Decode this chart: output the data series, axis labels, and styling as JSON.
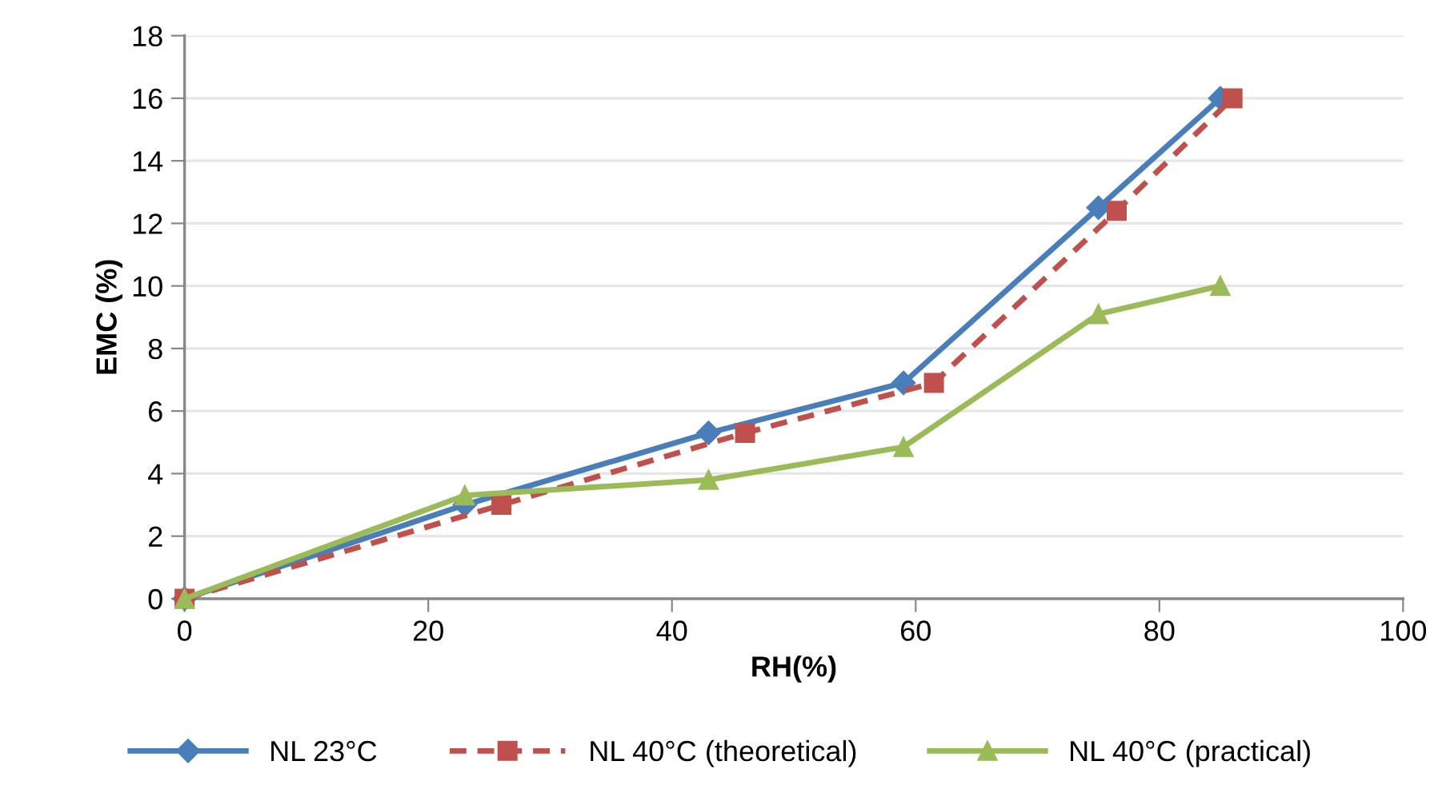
{
  "chart_data": {
    "type": "line",
    "xlabel": "RH(%)",
    "ylabel": "EMC (%)",
    "xlim": [
      0,
      100
    ],
    "xticks": [
      0,
      20,
      40,
      60,
      80,
      100
    ],
    "ylim": [
      0,
      18
    ],
    "yticks": [
      0,
      2,
      4,
      6,
      8,
      10,
      12,
      14,
      16,
      18
    ],
    "grid": "y",
    "legend": "bottom",
    "series": [
      {
        "name": "NL 23°C",
        "color": "#4a7ebb",
        "marker": "diamond",
        "line_style": "solid",
        "x": [
          0,
          23,
          43,
          59,
          75,
          85
        ],
        "values": [
          0,
          3.0,
          5.3,
          6.9,
          12.5,
          16.0
        ]
      },
      {
        "name": "NL 40°C (theoretical)",
        "color": "#c0504d",
        "marker": "square",
        "line_style": "dashed",
        "x": [
          0,
          26,
          46,
          61.5,
          76.5,
          86
        ],
        "values": [
          0,
          3.0,
          5.3,
          6.9,
          12.4,
          16.0
        ]
      },
      {
        "name": "NL 40°C (practical)",
        "color": "#9bbb59",
        "marker": "triangle",
        "line_style": "solid",
        "x": [
          0,
          23,
          43,
          59,
          75,
          85
        ],
        "values": [
          0,
          3.3,
          3.8,
          4.85,
          9.1,
          10.0
        ]
      }
    ]
  }
}
